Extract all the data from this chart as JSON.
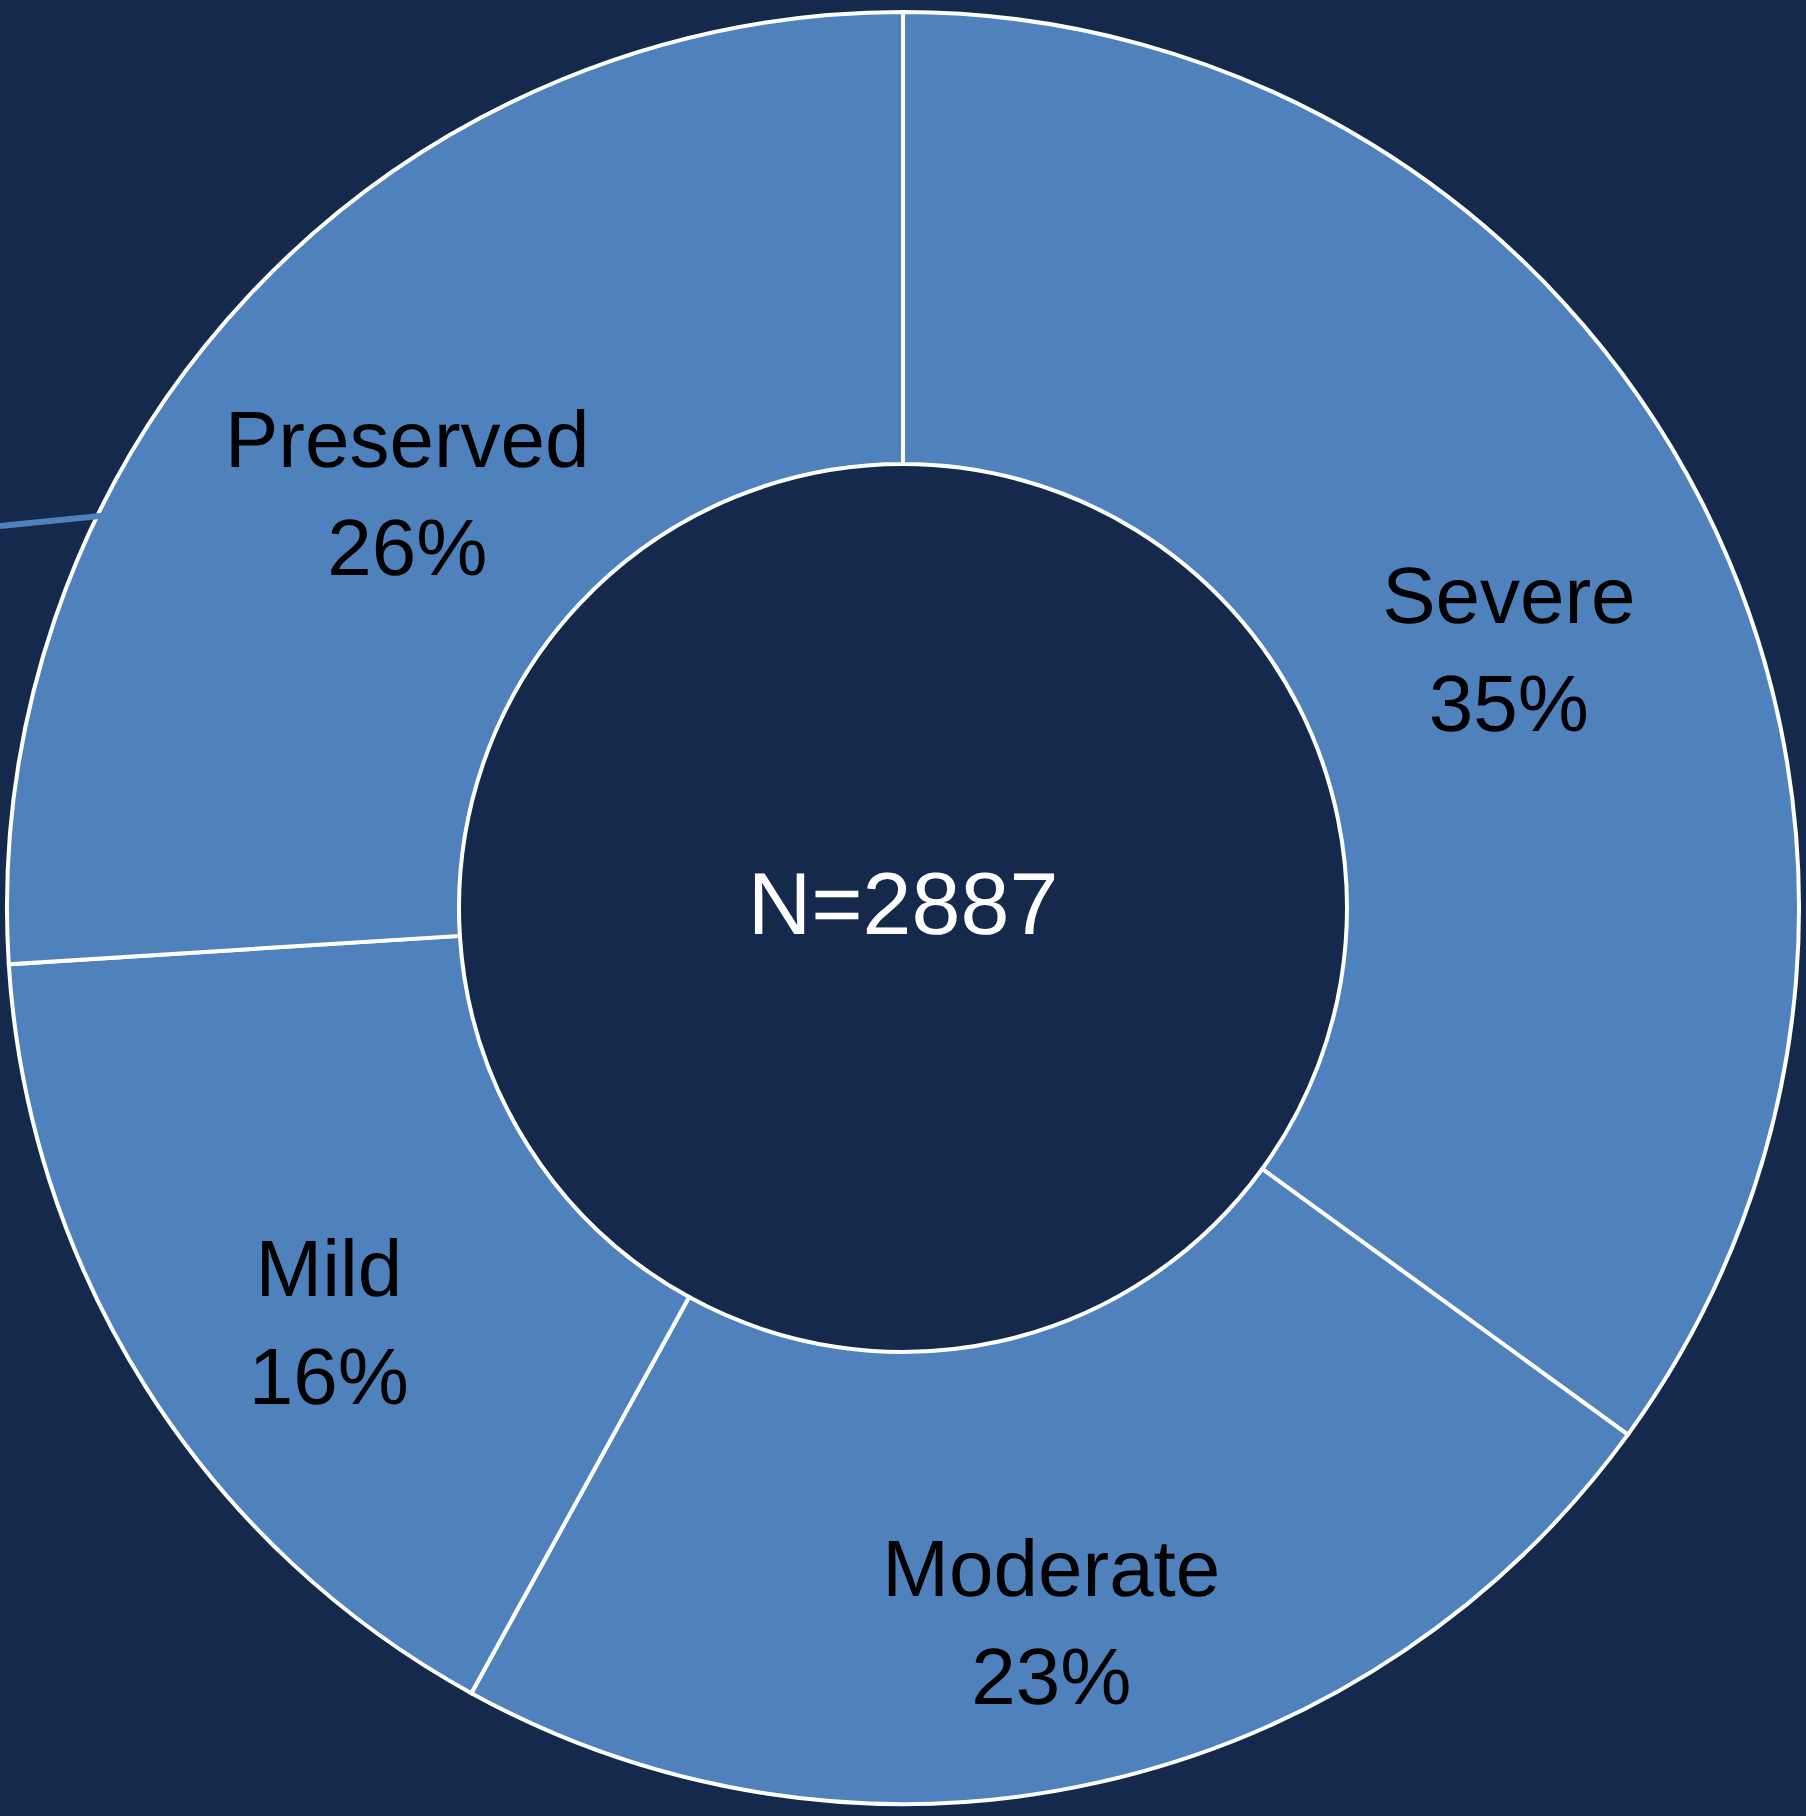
{
  "chart_data": {
    "type": "donut",
    "categories": [
      "Severe",
      "Moderate",
      "Mild",
      "Preserved"
    ],
    "values": [
      35,
      23,
      16,
      26
    ],
    "colors": [
      "#4f81bd",
      "#4f81bd",
      "#4f81bd",
      "#4f81bd"
    ],
    "value_labels": [
      "35%",
      "23%",
      "16%",
      "26%"
    ],
    "annotations": [
      "N=2887"
    ]
  }
}
